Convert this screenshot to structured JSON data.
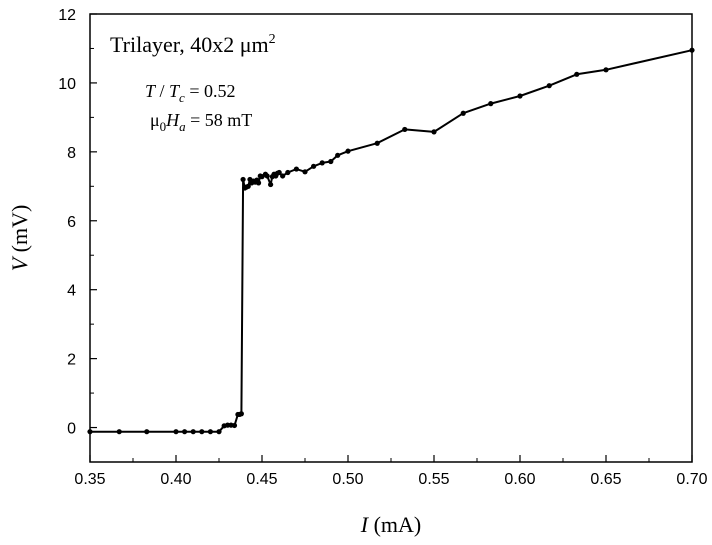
{
  "chart_data": {
    "type": "line",
    "xlabel": {
      "symbol": "I",
      "unit": " (mA)"
    },
    "ylabel": {
      "symbol": "V",
      "unit": " (mV)"
    },
    "xlim": [
      0.35,
      0.7
    ],
    "ylim": [
      -1,
      12
    ],
    "xticks": [
      "0.35",
      "0.40",
      "0.45",
      "0.50",
      "0.55",
      "0.60",
      "0.65",
      "0.70"
    ],
    "yticks": [
      "0",
      "2",
      "4",
      "6",
      "8",
      "10",
      "12"
    ],
    "annotations": {
      "title_main": "Trilayer, 40x2 μm",
      "title_sup": "2",
      "temp_T": "T",
      "temp_sep": " / ",
      "temp_Tc": "T",
      "temp_Tc_sub": "c",
      "temp_value": " = 0.52",
      "field_mu": "μ",
      "field_mu_sub": "0",
      "field_H": "H",
      "field_H_sub": "a",
      "field_value": " = 58 mT"
    },
    "series": [
      {
        "color": "#000000",
        "x": [
          0.35,
          0.367,
          0.383,
          0.4,
          0.405,
          0.41,
          0.415,
          0.42,
          0.425,
          0.428,
          0.43,
          0.432,
          0.434,
          0.436,
          0.437,
          0.438,
          0.439,
          0.44,
          0.441,
          0.442,
          0.443,
          0.444,
          0.445,
          0.446,
          0.447,
          0.448,
          0.449,
          0.45,
          0.452,
          0.453,
          0.455,
          0.456,
          0.457,
          0.458,
          0.459,
          0.46,
          0.462,
          0.465,
          0.47,
          0.475,
          0.48,
          0.485,
          0.49,
          0.494,
          0.5,
          0.517,
          0.533,
          0.55,
          0.567,
          0.583,
          0.6,
          0.617,
          0.633,
          0.65,
          0.7
        ],
        "y": [
          -0.12,
          -0.12,
          -0.12,
          -0.12,
          -0.12,
          -0.12,
          -0.12,
          -0.12,
          -0.12,
          0.05,
          0.07,
          0.07,
          0.06,
          0.38,
          0.38,
          0.4,
          7.2,
          6.95,
          6.98,
          7.0,
          7.2,
          7.1,
          7.15,
          7.12,
          7.18,
          7.1,
          7.3,
          7.28,
          7.35,
          7.3,
          7.05,
          7.28,
          7.35,
          7.3,
          7.38,
          7.4,
          7.3,
          7.4,
          7.5,
          7.42,
          7.58,
          7.68,
          7.72,
          7.9,
          8.02,
          8.25,
          8.65,
          8.58,
          9.12,
          9.4,
          9.62,
          9.92,
          10.25,
          10.38,
          10.95
        ]
      }
    ]
  }
}
